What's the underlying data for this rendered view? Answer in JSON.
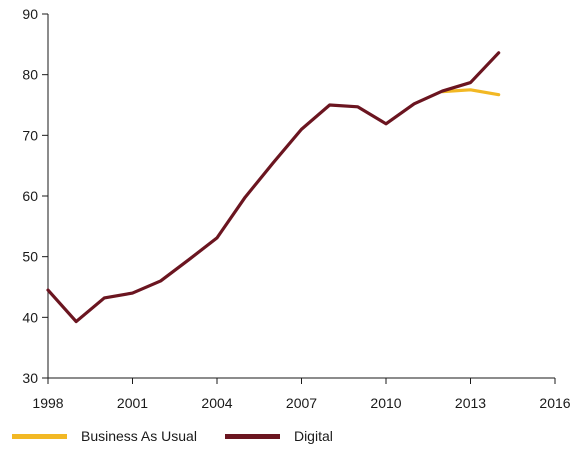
{
  "chart_data": {
    "type": "line",
    "title": "",
    "xlabel": "",
    "ylabel": "",
    "xlim": [
      1998,
      2016
    ],
    "ylim": [
      30,
      90
    ],
    "x_ticks": [
      1998,
      2001,
      2004,
      2007,
      2010,
      2013,
      2016
    ],
    "x_tick_labels": [
      "1998",
      "2001",
      "2004",
      "2007",
      "2010",
      "2013",
      "2016"
    ],
    "y_ticks": [
      30,
      40,
      50,
      60,
      70,
      80,
      90
    ],
    "y_tick_labels": [
      "30",
      "40",
      "50",
      "60",
      "70",
      "80",
      "90"
    ],
    "grid": false,
    "legend_position": "bottom-left",
    "series": [
      {
        "name": "Business As Usual",
        "color": "#f2b824",
        "x": [
          2012,
          2013,
          2014
        ],
        "y": [
          77.2,
          77.5,
          76.7
        ]
      },
      {
        "name": "Digital",
        "color": "#6b1520",
        "x": [
          1998,
          1999,
          2000,
          2001,
          2002,
          2003,
          2004,
          2005,
          2006,
          2007,
          2008,
          2009,
          2010,
          2011,
          2012,
          2013,
          2014
        ],
        "y": [
          44.5,
          39.3,
          43.2,
          44.0,
          46.0,
          49.5,
          53.1,
          59.8,
          65.5,
          71.0,
          75.0,
          74.7,
          71.9,
          75.2,
          77.3,
          78.7,
          83.6
        ]
      }
    ]
  }
}
